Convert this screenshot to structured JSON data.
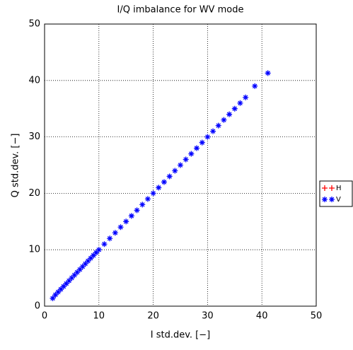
{
  "chart_data": {
    "type": "scatter",
    "title": "I/Q imbalance for WV mode",
    "x_label": "I std.dev. [−]",
    "y_label": "Q std.dev. [−]",
    "xlim": [
      0,
      50
    ],
    "ylim": [
      0,
      50
    ],
    "xticks": [
      0,
      10,
      20,
      30,
      40,
      50
    ],
    "yticks": [
      0,
      10,
      20,
      30,
      40,
      50
    ],
    "grid": true,
    "legend": "outside right",
    "series": [
      {
        "name": "H",
        "color": "#ff0000",
        "marker": "+",
        "x": [],
        "values": []
      },
      {
        "name": "V",
        "color": "#0000ff",
        "marker": "*",
        "x": [
          1.5,
          2,
          2.5,
          3,
          3.5,
          4,
          4.5,
          5,
          5.5,
          6,
          6.5,
          7,
          7.5,
          8,
          8.5,
          9,
          9.5,
          10,
          11,
          12,
          13,
          14,
          15,
          16,
          17,
          18,
          19,
          20,
          21,
          22,
          23,
          24,
          25,
          26,
          27,
          28,
          29,
          30,
          31,
          32,
          33,
          34,
          35,
          36,
          37,
          38.7,
          41.1
        ],
        "values": [
          1.4,
          2,
          2.5,
          3,
          3.5,
          4,
          4.5,
          5,
          5.5,
          6,
          6.5,
          7,
          7.5,
          8,
          8.5,
          9,
          9.5,
          10,
          11,
          12,
          13,
          14,
          15,
          16,
          17,
          18,
          19,
          20,
          21,
          22,
          23,
          24,
          25,
          26,
          27,
          28,
          29,
          30,
          31,
          32,
          33,
          34,
          35,
          36,
          37,
          39,
          41.3
        ]
      }
    ]
  }
}
